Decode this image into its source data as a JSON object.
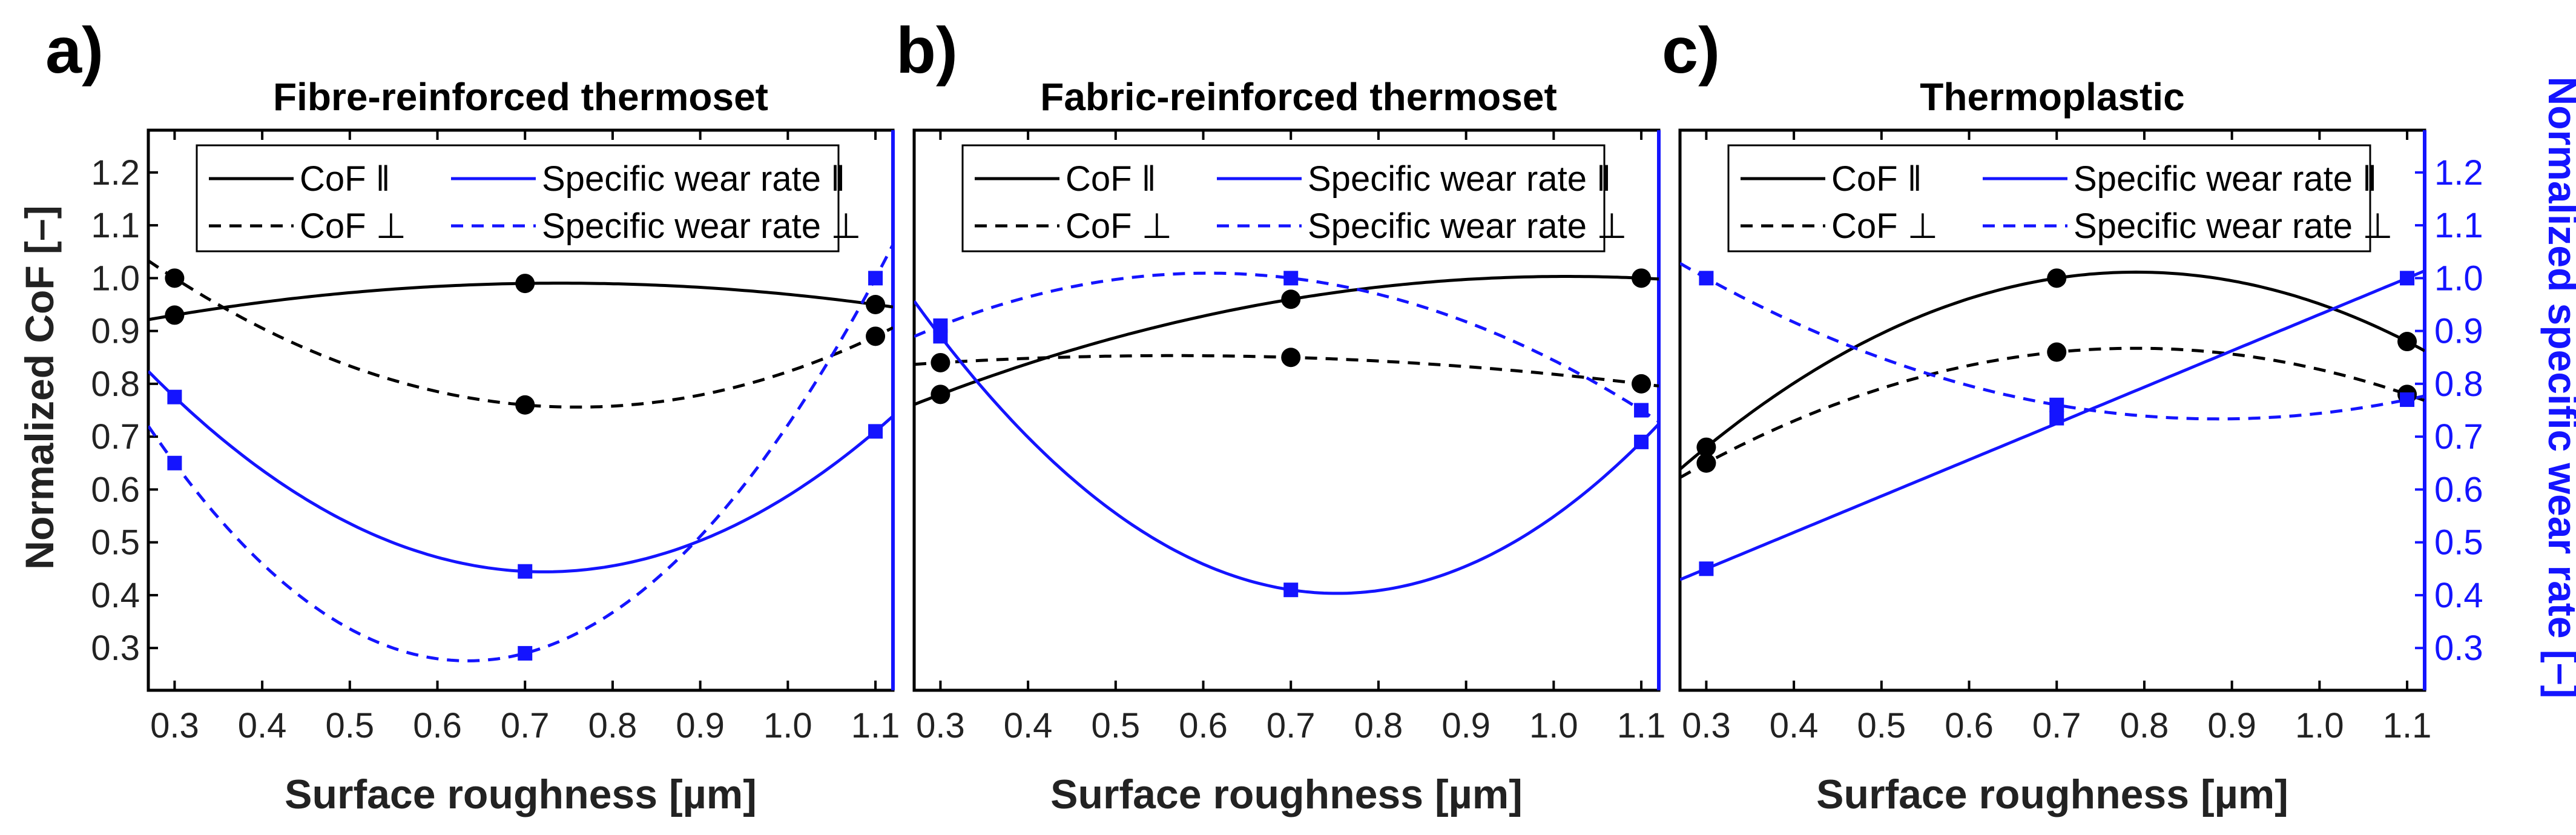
{
  "x_axis_label": "Surface roughness [µm]",
  "y_left_label": "Normalized CoF [–]",
  "y_right_label": "Normalized specific wear rate [–]",
  "legend": {
    "cof_par": "CoF ‖",
    "cof_perp": "CoF ⊥",
    "wear_par": "Specific wear rate ‖",
    "wear_perp": "Specific wear rate ⊥"
  },
  "colors": {
    "cof": "#000000",
    "wear": "#1414ff"
  },
  "chart_data": [
    {
      "type": "line",
      "panel_label": "a)",
      "title": "Fibre-reinforced thermoset",
      "x": [
        0.3,
        0.7,
        1.1
      ],
      "xlim": [
        0.27,
        1.12
      ],
      "ylim": [
        0.22,
        1.28
      ],
      "xticks": [
        "0.3",
        "0.4",
        "0.5",
        "0.6",
        "0.7",
        "0.8",
        "0.9",
        "1.0",
        "1.1"
      ],
      "yticks": [
        "0.3",
        "0.4",
        "0.5",
        "0.6",
        "0.7",
        "0.8",
        "0.9",
        "1.0",
        "1.1",
        "1.2"
      ],
      "series": [
        {
          "name": "CoF ‖",
          "values": [
            0.93,
            0.99,
            0.95
          ]
        },
        {
          "name": "CoF ⊥",
          "values": [
            1.0,
            0.76,
            0.89
          ]
        },
        {
          "name": "Specific wear rate ‖",
          "values": [
            0.775,
            0.445,
            0.71
          ]
        },
        {
          "name": "Specific wear rate ⊥",
          "values": [
            0.65,
            0.29,
            1.0
          ]
        }
      ]
    },
    {
      "type": "line",
      "panel_label": "b)",
      "title": "Fabric-reinforced thermoset",
      "x": [
        0.3,
        0.7,
        1.1
      ],
      "xlim": [
        0.27,
        1.12
      ],
      "ylim": [
        0.22,
        1.28
      ],
      "xticks": [
        "0.3",
        "0.4",
        "0.5",
        "0.6",
        "0.7",
        "0.8",
        "0.9",
        "1.0",
        "1.1"
      ],
      "yticks": [],
      "series": [
        {
          "name": "CoF ‖",
          "values": [
            0.78,
            0.96,
            1.0
          ]
        },
        {
          "name": "CoF ⊥",
          "values": [
            0.84,
            0.85,
            0.8
          ]
        },
        {
          "name": "Specific wear rate ‖",
          "values": [
            0.89,
            0.41,
            0.69
          ]
        },
        {
          "name": "Specific wear rate ⊥",
          "values": [
            0.91,
            1.0,
            0.75
          ]
        }
      ]
    },
    {
      "type": "line",
      "panel_label": "c)",
      "title": "Thermoplastic",
      "x": [
        0.3,
        0.7,
        1.1
      ],
      "xlim": [
        0.27,
        1.12
      ],
      "ylim": [
        0.22,
        1.28
      ],
      "xticks": [
        "0.3",
        "0.4",
        "0.5",
        "0.6",
        "0.7",
        "0.8",
        "0.9",
        "1.0",
        "1.1"
      ],
      "yticks_right": [
        "0.3",
        "0.4",
        "0.5",
        "0.6",
        "0.7",
        "0.8",
        "0.9",
        "1.0",
        "1.1",
        "1.2"
      ],
      "series": [
        {
          "name": "CoF ‖",
          "values": [
            0.68,
            1.0,
            0.88
          ]
        },
        {
          "name": "CoF ⊥",
          "values": [
            0.65,
            0.86,
            0.78
          ]
        },
        {
          "name": "Specific wear rate ‖",
          "values": [
            0.45,
            0.735,
            1.0
          ]
        },
        {
          "name": "Specific wear rate ⊥",
          "values": [
            1.0,
            0.76,
            0.77
          ]
        }
      ]
    }
  ]
}
